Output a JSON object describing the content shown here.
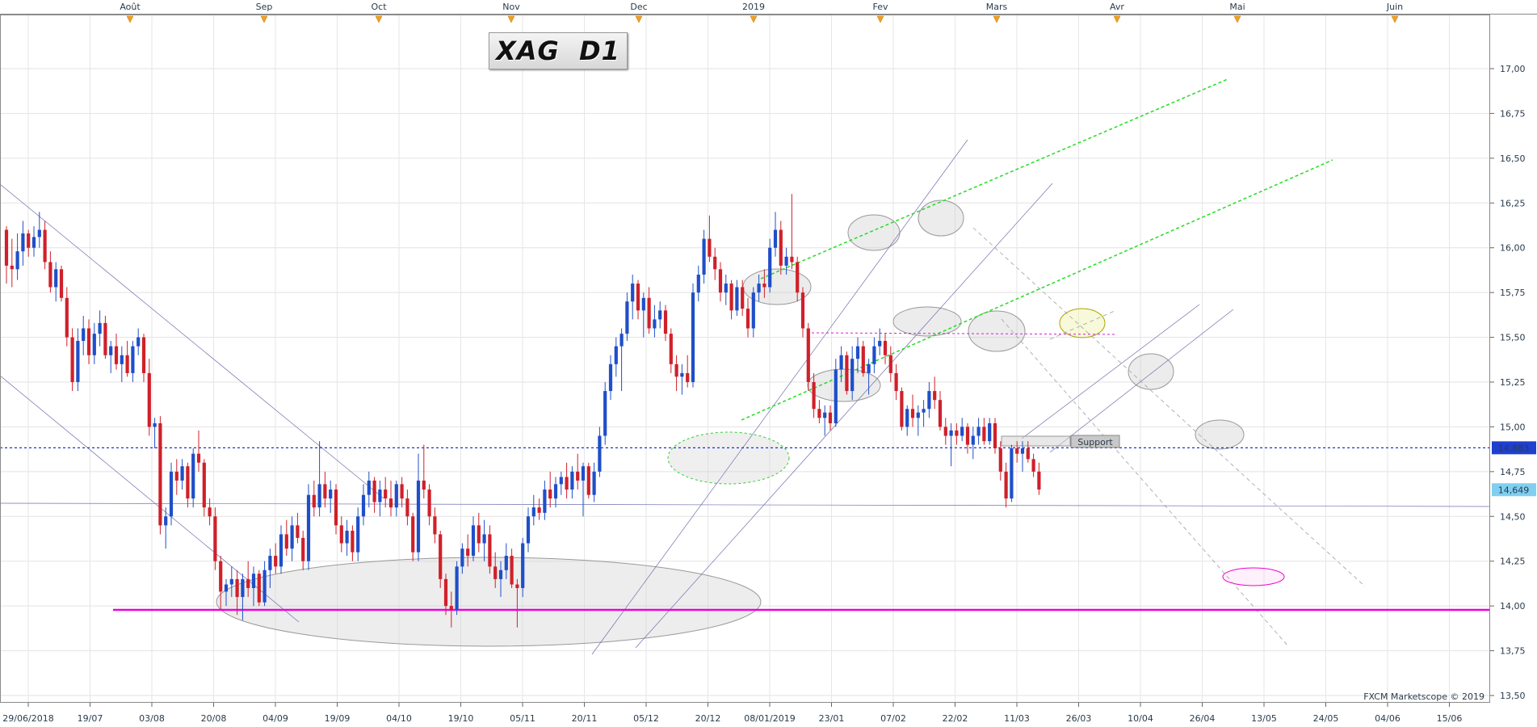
{
  "chart_data": {
    "type": "candlestick",
    "title": "XAG  D1",
    "watermark": "FXCM Marketscope © 2019",
    "y_axis": {
      "range": [
        13.5,
        17.3
      ],
      "ticks": [
        "17,00",
        "16,75",
        "16,50",
        "16,25",
        "16,00",
        "15,75",
        "15,50",
        "15,25",
        "15,00",
        "14,75",
        "14,50",
        "14,25",
        "14,00",
        "13,75",
        "13,50"
      ]
    },
    "price_tags": [
      {
        "value": 14.883,
        "label": "14,883",
        "bg": "#1f3fd0",
        "fg": "#ffffff"
      },
      {
        "value": 14.649,
        "label": "14,649",
        "bg": "#7fd0f0",
        "fg": "#0a2a55"
      }
    ],
    "month_markers": [
      {
        "label": "Août",
        "date": "2018-08-01"
      },
      {
        "label": "Sep",
        "date": "2018-09-03"
      },
      {
        "label": "Oct",
        "date": "2018-10-01"
      },
      {
        "label": "Nov",
        "date": "2018-11-01"
      },
      {
        "label": "Dec",
        "date": "2018-12-03"
      },
      {
        "label": "2019",
        "date": "2019-01-01"
      },
      {
        "label": "Fev",
        "date": "2019-02-01"
      },
      {
        "label": "Mars",
        "date": "2019-03-01"
      },
      {
        "label": "Avr",
        "date": "2019-04-01"
      },
      {
        "label": "Mai",
        "date": "2019-05-01"
      },
      {
        "label": "Juin",
        "date": "2019-06-03"
      }
    ],
    "date_ticks": [
      "29/06/2018",
      "19/07",
      "03/08",
      "20/08",
      "04/09",
      "19/09",
      "04/10",
      "19/10",
      "05/11",
      "20/11",
      "05/12",
      "20/12",
      "08/01/2019",
      "23/01",
      "07/02",
      "22/02",
      "11/03",
      "26/03",
      "10/04",
      "26/04",
      "13/05",
      "24/05",
      "04/06",
      "15/06"
    ],
    "support_label": "Support",
    "candles": [
      [
        16.1,
        16.12,
        15.8,
        15.9
      ],
      [
        15.9,
        16.05,
        15.78,
        15.88
      ],
      [
        15.88,
        16.08,
        15.82,
        15.98
      ],
      [
        15.98,
        16.15,
        15.9,
        16.08
      ],
      [
        16.08,
        16.1,
        15.95,
        16.0
      ],
      [
        16.0,
        16.12,
        15.95,
        16.06
      ],
      [
        16.06,
        16.2,
        16.0,
        16.1
      ],
      [
        16.1,
        16.15,
        15.88,
        15.92
      ],
      [
        15.92,
        15.98,
        15.75,
        15.78
      ],
      [
        15.78,
        15.92,
        15.7,
        15.88
      ],
      [
        15.88,
        15.9,
        15.7,
        15.72
      ],
      [
        15.72,
        15.78,
        15.45,
        15.5
      ],
      [
        15.5,
        15.55,
        15.2,
        15.25
      ],
      [
        15.25,
        15.55,
        15.2,
        15.48
      ],
      [
        15.48,
        15.62,
        15.4,
        15.55
      ],
      [
        15.55,
        15.6,
        15.35,
        15.4
      ],
      [
        15.4,
        15.58,
        15.35,
        15.52
      ],
      [
        15.52,
        15.65,
        15.45,
        15.58
      ],
      [
        15.58,
        15.62,
        15.38,
        15.4
      ],
      [
        15.4,
        15.48,
        15.3,
        15.45
      ],
      [
        15.45,
        15.52,
        15.32,
        15.35
      ],
      [
        15.35,
        15.45,
        15.25,
        15.4
      ],
      [
        15.4,
        15.48,
        15.28,
        15.3
      ],
      [
        15.3,
        15.48,
        15.25,
        15.45
      ],
      [
        15.45,
        15.55,
        15.4,
        15.5
      ],
      [
        15.5,
        15.52,
        15.25,
        15.3
      ],
      [
        15.3,
        15.38,
        14.95,
        15.0
      ],
      [
        15.0,
        15.05,
        14.88,
        15.02
      ],
      [
        15.02,
        15.06,
        14.4,
        14.45
      ],
      [
        14.45,
        14.55,
        14.32,
        14.5
      ],
      [
        14.5,
        14.8,
        14.45,
        14.75
      ],
      [
        14.75,
        14.82,
        14.62,
        14.7
      ],
      [
        14.7,
        14.82,
        14.65,
        14.78
      ],
      [
        14.78,
        14.8,
        14.55,
        14.6
      ],
      [
        14.6,
        14.88,
        14.55,
        14.85
      ],
      [
        14.85,
        14.98,
        14.75,
        14.8
      ],
      [
        14.8,
        14.82,
        14.5,
        14.55
      ],
      [
        14.55,
        14.6,
        14.45,
        14.5
      ],
      [
        14.5,
        14.55,
        14.2,
        14.25
      ],
      [
        14.25,
        14.28,
        13.98,
        14.08
      ],
      [
        14.08,
        14.15,
        14.0,
        14.12
      ],
      [
        14.12,
        14.22,
        14.05,
        14.15
      ],
      [
        14.15,
        14.2,
        13.95,
        14.05
      ],
      [
        14.05,
        14.18,
        13.92,
        14.15
      ],
      [
        14.15,
        14.25,
        14.05,
        14.1
      ],
      [
        14.1,
        14.22,
        14.0,
        14.18
      ],
      [
        14.18,
        14.2,
        14.0,
        14.02
      ],
      [
        14.02,
        14.25,
        14.0,
        14.2
      ],
      [
        14.2,
        14.32,
        14.1,
        14.28
      ],
      [
        14.28,
        14.35,
        14.18,
        14.22
      ],
      [
        14.22,
        14.45,
        14.18,
        14.4
      ],
      [
        14.4,
        14.48,
        14.28,
        14.32
      ],
      [
        14.32,
        14.5,
        14.25,
        14.45
      ],
      [
        14.45,
        14.52,
        14.35,
        14.38
      ],
      [
        14.38,
        14.42,
        14.2,
        14.25
      ],
      [
        14.25,
        14.68,
        14.2,
        14.62
      ],
      [
        14.62,
        14.7,
        14.5,
        14.55
      ],
      [
        14.55,
        14.92,
        14.5,
        14.68
      ],
      [
        14.68,
        14.75,
        14.55,
        14.6
      ],
      [
        14.6,
        14.7,
        14.52,
        14.65
      ],
      [
        14.65,
        14.68,
        14.4,
        14.45
      ],
      [
        14.45,
        14.5,
        14.3,
        14.35
      ],
      [
        14.35,
        14.48,
        14.28,
        14.42
      ],
      [
        14.42,
        14.45,
        14.25,
        14.3
      ],
      [
        14.3,
        14.55,
        14.25,
        14.5
      ],
      [
        14.5,
        14.68,
        14.45,
        14.62
      ],
      [
        14.62,
        14.75,
        14.55,
        14.7
      ],
      [
        14.7,
        14.72,
        14.52,
        14.58
      ],
      [
        14.58,
        14.7,
        14.5,
        14.65
      ],
      [
        14.65,
        14.72,
        14.55,
        14.6
      ],
      [
        14.6,
        14.7,
        14.5,
        14.55
      ],
      [
        14.55,
        14.7,
        14.5,
        14.68
      ],
      [
        14.68,
        14.72,
        14.55,
        14.6
      ],
      [
        14.6,
        14.65,
        14.45,
        14.5
      ],
      [
        14.5,
        14.52,
        14.25,
        14.3
      ],
      [
        14.3,
        14.85,
        14.25,
        14.7
      ],
      [
        14.7,
        14.9,
        14.6,
        14.65
      ],
      [
        14.65,
        14.68,
        14.45,
        14.5
      ],
      [
        14.5,
        14.55,
        14.35,
        14.4
      ],
      [
        14.4,
        14.42,
        14.1,
        14.15
      ],
      [
        14.15,
        14.18,
        13.95,
        14.0
      ],
      [
        14.0,
        14.08,
        13.88,
        13.98
      ],
      [
        13.98,
        14.25,
        13.95,
        14.22
      ],
      [
        14.22,
        14.35,
        14.18,
        14.32
      ],
      [
        14.32,
        14.4,
        14.22,
        14.28
      ],
      [
        14.28,
        14.5,
        14.25,
        14.45
      ],
      [
        14.45,
        14.52,
        14.3,
        14.35
      ],
      [
        14.35,
        14.48,
        14.25,
        14.4
      ],
      [
        14.4,
        14.45,
        14.18,
        14.22
      ],
      [
        14.22,
        14.3,
        14.1,
        14.15
      ],
      [
        14.15,
        14.25,
        14.05,
        14.2
      ],
      [
        14.2,
        14.35,
        14.15,
        14.28
      ],
      [
        14.28,
        14.32,
        14.1,
        14.12
      ],
      [
        14.12,
        14.15,
        13.88,
        14.1
      ],
      [
        14.1,
        14.38,
        14.05,
        14.35
      ],
      [
        14.35,
        14.55,
        14.3,
        14.5
      ],
      [
        14.5,
        14.62,
        14.45,
        14.55
      ],
      [
        14.55,
        14.6,
        14.48,
        14.52
      ],
      [
        14.52,
        14.7,
        14.48,
        14.65
      ],
      [
        14.65,
        14.75,
        14.55,
        14.6
      ],
      [
        14.6,
        14.72,
        14.55,
        14.68
      ],
      [
        14.68,
        14.75,
        14.62,
        14.72
      ],
      [
        14.72,
        14.8,
        14.6,
        14.65
      ],
      [
        14.65,
        14.78,
        14.6,
        14.75
      ],
      [
        14.75,
        14.85,
        14.65,
        14.7
      ],
      [
        14.7,
        14.8,
        14.5,
        14.78
      ],
      [
        14.78,
        14.8,
        14.6,
        14.62
      ],
      [
        14.62,
        14.8,
        14.58,
        14.75
      ],
      [
        14.75,
        15.0,
        14.72,
        14.95
      ],
      [
        14.95,
        15.25,
        14.9,
        15.2
      ],
      [
        15.2,
        15.4,
        15.15,
        15.35
      ],
      [
        15.35,
        15.5,
        15.28,
        15.45
      ],
      [
        15.45,
        15.55,
        15.2,
        15.52
      ],
      [
        15.52,
        15.75,
        15.48,
        15.7
      ],
      [
        15.7,
        15.85,
        15.6,
        15.8
      ],
      [
        15.8,
        15.82,
        15.6,
        15.65
      ],
      [
        15.65,
        15.75,
        15.5,
        15.72
      ],
      [
        15.72,
        15.78,
        15.52,
        15.55
      ],
      [
        15.55,
        15.68,
        15.5,
        15.6
      ],
      [
        15.6,
        15.7,
        15.55,
        15.65
      ],
      [
        15.65,
        15.68,
        15.48,
        15.52
      ],
      [
        15.52,
        15.55,
        15.3,
        15.35
      ],
      [
        15.35,
        15.4,
        15.2,
        15.28
      ],
      [
        15.28,
        15.35,
        15.18,
        15.3
      ],
      [
        15.3,
        15.4,
        15.22,
        15.25
      ],
      [
        15.25,
        15.8,
        15.22,
        15.75
      ],
      [
        15.75,
        15.9,
        15.7,
        15.85
      ],
      [
        15.85,
        16.1,
        15.8,
        16.05
      ],
      [
        16.05,
        16.18,
        15.92,
        15.95
      ],
      [
        15.95,
        16.0,
        15.82,
        15.88
      ],
      [
        15.88,
        15.92,
        15.7,
        15.75
      ],
      [
        15.75,
        15.85,
        15.68,
        15.8
      ],
      [
        15.8,
        15.82,
        15.6,
        15.65
      ],
      [
        15.65,
        15.82,
        15.62,
        15.78
      ],
      [
        15.78,
        15.82,
        15.62,
        15.66
      ],
      [
        15.66,
        15.72,
        15.5,
        15.55
      ],
      [
        15.55,
        15.78,
        15.5,
        15.75
      ],
      [
        15.75,
        15.85,
        15.7,
        15.8
      ],
      [
        15.8,
        15.88,
        15.72,
        15.78
      ],
      [
        15.78,
        16.05,
        15.75,
        16.0
      ],
      [
        16.0,
        16.2,
        15.95,
        16.1
      ],
      [
        16.1,
        16.15,
        15.85,
        15.9
      ],
      [
        15.9,
        16.0,
        15.85,
        15.95
      ],
      [
        15.95,
        16.3,
        15.88,
        15.92
      ],
      [
        15.92,
        15.95,
        15.7,
        15.75
      ],
      [
        15.75,
        15.78,
        15.5,
        15.55
      ],
      [
        15.55,
        15.58,
        15.2,
        15.25
      ],
      [
        15.25,
        15.3,
        15.05,
        15.1
      ],
      [
        15.1,
        15.15,
        15.02,
        15.05
      ],
      [
        15.05,
        15.12,
        14.95,
        15.08
      ],
      [
        15.08,
        15.12,
        14.98,
        15.02
      ],
      [
        15.02,
        15.38,
        15.0,
        15.32
      ],
      [
        15.32,
        15.45,
        15.25,
        15.4
      ],
      [
        15.4,
        15.42,
        15.18,
        15.2
      ],
      [
        15.2,
        15.45,
        15.15,
        15.38
      ],
      [
        15.38,
        15.5,
        15.3,
        15.45
      ],
      [
        15.45,
        15.48,
        15.28,
        15.3
      ],
      [
        15.3,
        15.38,
        15.18,
        15.35
      ],
      [
        15.35,
        15.5,
        15.3,
        15.45
      ],
      [
        15.45,
        15.55,
        15.4,
        15.48
      ],
      [
        15.48,
        15.52,
        15.35,
        15.4
      ],
      [
        15.4,
        15.45,
        15.25,
        15.3
      ],
      [
        15.3,
        15.35,
        15.15,
        15.2
      ],
      [
        15.2,
        15.22,
        14.98,
        15.0
      ],
      [
        15.0,
        15.12,
        14.95,
        15.1
      ],
      [
        15.1,
        15.18,
        15.0,
        15.05
      ],
      [
        15.05,
        15.12,
        14.95,
        15.08
      ],
      [
        15.08,
        15.15,
        15.0,
        15.1
      ],
      [
        15.1,
        15.25,
        15.05,
        15.2
      ],
      [
        15.2,
        15.28,
        15.1,
        15.15
      ],
      [
        15.15,
        15.2,
        14.98,
        15.0
      ],
      [
        15.0,
        15.05,
        14.9,
        14.95
      ],
      [
        14.95,
        15.02,
        14.78,
        14.98
      ],
      [
        14.98,
        15.02,
        14.9,
        14.95
      ],
      [
        14.95,
        15.05,
        14.92,
        15.0
      ],
      [
        15.0,
        15.02,
        14.85,
        14.9
      ],
      [
        14.9,
        15.0,
        14.82,
        14.95
      ],
      [
        14.95,
        15.05,
        14.9,
        15.0
      ],
      [
        15.0,
        15.05,
        14.9,
        14.92
      ],
      [
        14.92,
        15.05,
        14.9,
        15.02
      ],
      [
        15.02,
        15.05,
        14.85,
        14.88
      ],
      [
        14.88,
        14.92,
        14.7,
        14.75
      ],
      [
        14.75,
        14.8,
        14.55,
        14.6
      ],
      [
        14.6,
        14.9,
        14.58,
        14.88
      ],
      [
        14.88,
        14.92,
        14.8,
        14.85
      ],
      [
        14.85,
        14.92,
        14.75,
        14.88
      ],
      [
        14.88,
        14.92,
        14.8,
        14.82
      ],
      [
        14.82,
        14.85,
        14.72,
        14.75
      ],
      [
        14.75,
        14.8,
        14.62,
        14.65
      ]
    ]
  }
}
